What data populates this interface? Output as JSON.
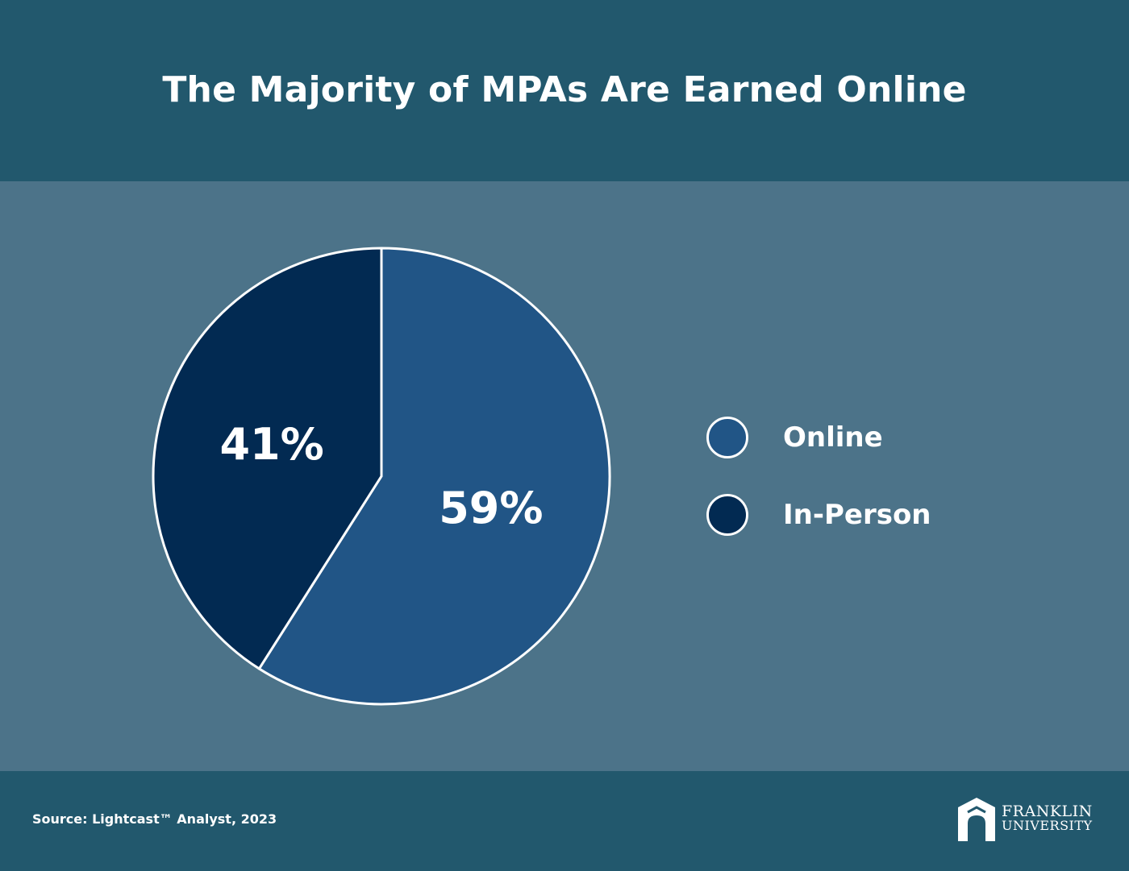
{
  "header": {
    "title": "The Majority of MPAs Are Earned Online"
  },
  "chart_data": {
    "type": "pie",
    "slices": [
      {
        "label": "Online",
        "value": 59,
        "display": "59%",
        "color": "#215586"
      },
      {
        "label": "In-Person",
        "value": 41,
        "display": "41%",
        "color": "#022a52"
      }
    ],
    "start": "12 o'clock",
    "direction": "clockwise",
    "legend_placement": "right",
    "slice_border_color": "#ffffff"
  },
  "footer": {
    "source": "Source: Lightcast™ Analyst, 2023",
    "logo": {
      "line1": "FRANKLIN",
      "line2": "UNIVERSITY",
      "icon": "franklin-arch-logo-icon"
    }
  },
  "colors": {
    "header_bg": "#22586d",
    "main_bg": "#4c7389",
    "footer_bg": "#22586d",
    "text": "#ffffff"
  }
}
